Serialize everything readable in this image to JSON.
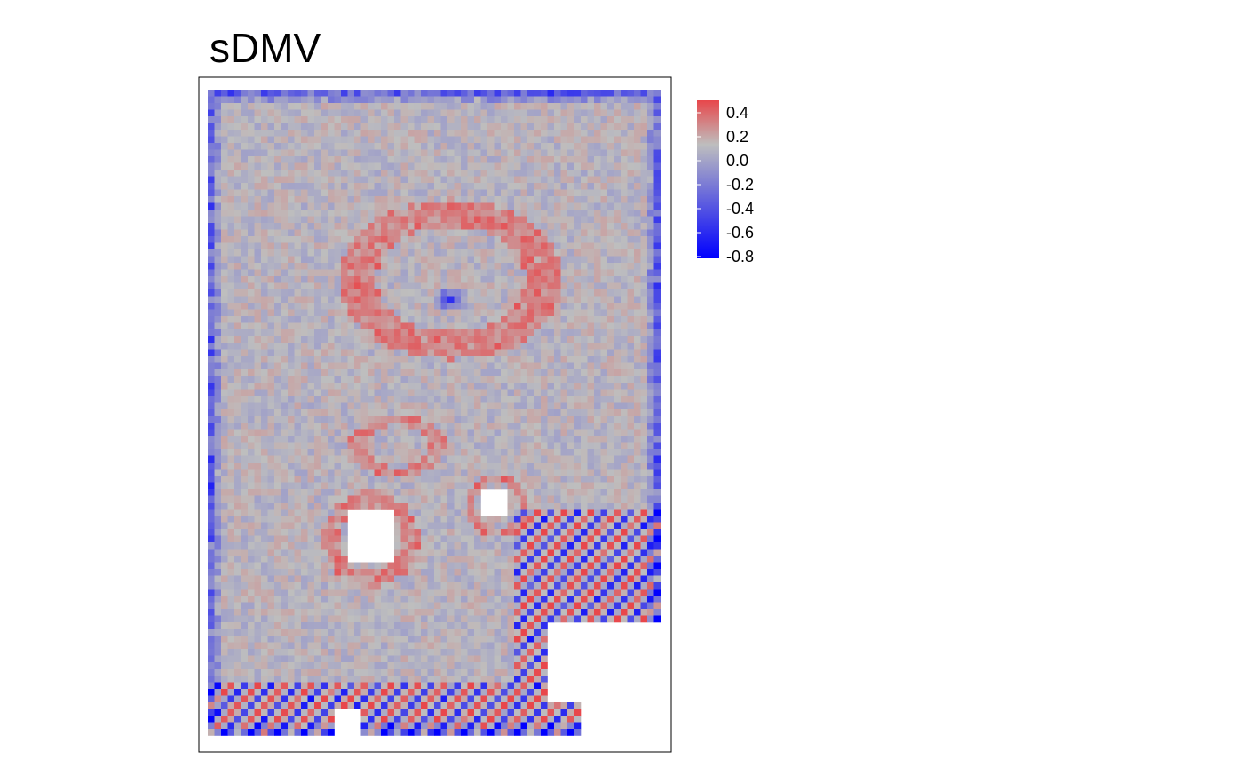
{
  "chart_data": {
    "type": "heatmap",
    "title": "sDMV",
    "xlabel": "",
    "ylabel": "",
    "grid": false,
    "legend_position": "right",
    "colors": {
      "high": "#e8474b",
      "mid": "#bebebe",
      "low": "#0000ff",
      "panel_border": "#000000",
      "missing": "#ffffff"
    },
    "color_scale": {
      "min": -0.8,
      "max": 0.45,
      "ticks": [
        0.4,
        0.2,
        0.0,
        -0.2,
        -0.4,
        -0.6,
        -0.8
      ],
      "tick_labels": [
        "0.4",
        "0.2",
        "0.0",
        "-0.2",
        "-0.4",
        "-0.6",
        "-0.8"
      ]
    },
    "grid_shape": {
      "cols": 68,
      "rows": 97
    },
    "missing_regions": [
      {
        "name": "hole-left",
        "cols": [
          21,
          27
        ],
        "rows": [
          63,
          70
        ]
      },
      {
        "name": "hole-center",
        "cols": [
          41,
          44
        ],
        "rows": [
          60,
          63
        ]
      },
      {
        "name": "hole-lower-right",
        "cols": [
          51,
          67
        ],
        "rows": [
          80,
          91
        ]
      },
      {
        "name": "notch-bottom",
        "cols": [
          19,
          22
        ],
        "rows": [
          93,
          96
        ]
      },
      {
        "name": "corner-bottom-right",
        "cols": [
          56,
          67
        ],
        "rows": [
          90,
          96
        ]
      }
    ],
    "structures": [
      {
        "name": "upper-ring",
        "center": [
          36,
          28
        ],
        "radius": [
          14,
          10
        ],
        "value": 0.3
      },
      {
        "name": "upper-ring-core",
        "center": [
          36,
          31
        ],
        "radius": [
          3,
          2
        ],
        "value": -0.55
      },
      {
        "name": "middle-ring",
        "center": [
          28,
          53
        ],
        "radius": [
          6,
          4
        ],
        "value": 0.28
      },
      {
        "name": "left-hole-ring",
        "center": [
          24,
          67
        ],
        "radius": [
          6,
          6
        ],
        "value": 0.3
      },
      {
        "name": "center-hole-ring",
        "center": [
          43,
          62
        ],
        "radius": [
          4,
          4
        ],
        "value": 0.3
      }
    ]
  }
}
